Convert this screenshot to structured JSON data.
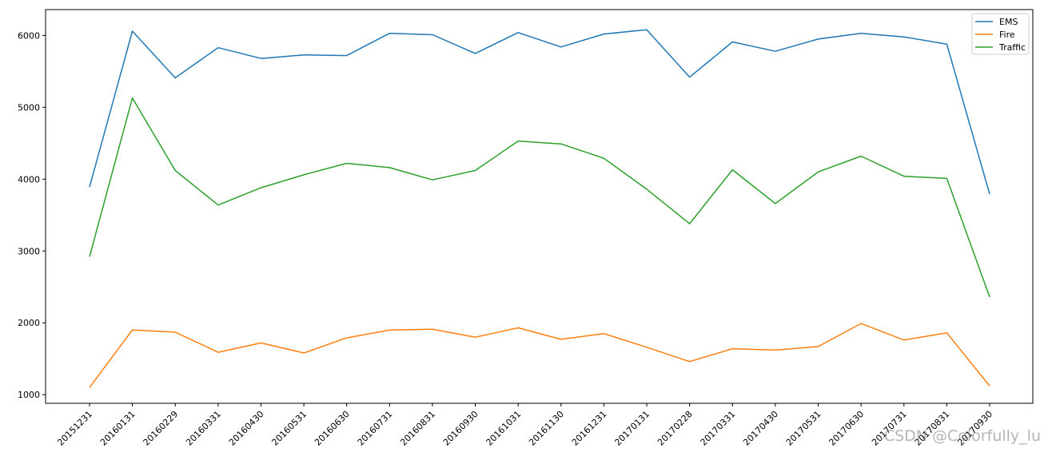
{
  "chart_data": {
    "type": "line",
    "categories": [
      "20151231",
      "20160131",
      "20160229",
      "20160331",
      "20160430",
      "20160531",
      "20160630",
      "20160731",
      "20160831",
      "20160930",
      "20161031",
      "20161130",
      "20161231",
      "20170131",
      "20170228",
      "20170331",
      "20170430",
      "20170531",
      "20170630",
      "20170731",
      "20170831",
      "20170930"
    ],
    "series": [
      {
        "name": "EMS",
        "color": "#1f77b4",
        "values": [
          3890,
          6060,
          5410,
          5830,
          5680,
          5730,
          5720,
          6030,
          6010,
          5750,
          6040,
          5840,
          6020,
          6080,
          5420,
          5910,
          5780,
          5950,
          6030,
          5980,
          5880,
          3790
        ]
      },
      {
        "name": "Fire",
        "color": "#ff7f0e",
        "values": [
          1100,
          1900,
          1870,
          1590,
          1720,
          1580,
          1790,
          1900,
          1910,
          1800,
          1930,
          1770,
          1850,
          1660,
          1460,
          1640,
          1620,
          1670,
          1990,
          1760,
          1860,
          1120
        ]
      },
      {
        "name": "Traffic",
        "color": "#2ca02c",
        "values": [
          2920,
          5130,
          4120,
          3640,
          3880,
          4060,
          4220,
          4160,
          3990,
          4120,
          4530,
          4490,
          4290,
          3860,
          3380,
          4130,
          3660,
          4100,
          4320,
          4040,
          4010,
          2360
        ]
      }
    ],
    "yticks": [
      1000,
      2000,
      3000,
      4000,
      5000,
      6000
    ],
    "ylim": [
      880,
      6360
    ],
    "grid": false,
    "legend_position": "top-right",
    "title": "",
    "xlabel": "",
    "ylabel": ""
  },
  "watermark": "CSDN @Colorfully_lu"
}
